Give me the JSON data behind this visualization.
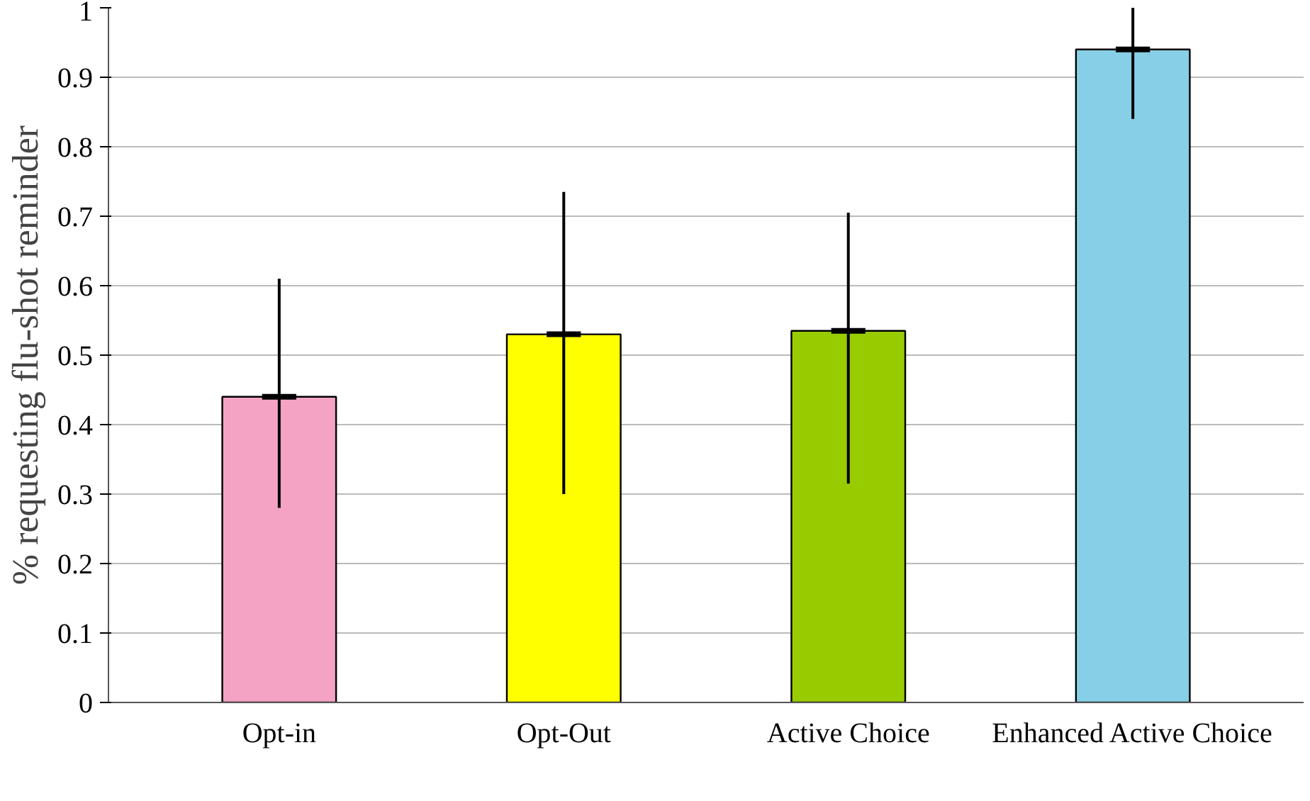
{
  "chart_data": {
    "type": "bar",
    "ylabel": "% requesting flu-shot reminder",
    "categories": [
      "Opt-in",
      "Opt-Out",
      "Active Choice",
      "Enhanced Active Choice"
    ],
    "values": [
      0.44,
      0.53,
      0.535,
      0.94
    ],
    "colors": [
      "#f4a3c4",
      "#ffff00",
      "#99cc00",
      "#87cfe6"
    ],
    "errors": [
      [
        0.28,
        0.61
      ],
      [
        0.3,
        0.735
      ],
      [
        0.315,
        0.705
      ],
      [
        0.84,
        1.0
      ]
    ],
    "ylim": [
      0,
      1
    ],
    "yticks": [
      0,
      0.1,
      0.2,
      0.3,
      0.4,
      0.5,
      0.6,
      0.7,
      0.8,
      0.9,
      1
    ],
    "grid": "y"
  }
}
